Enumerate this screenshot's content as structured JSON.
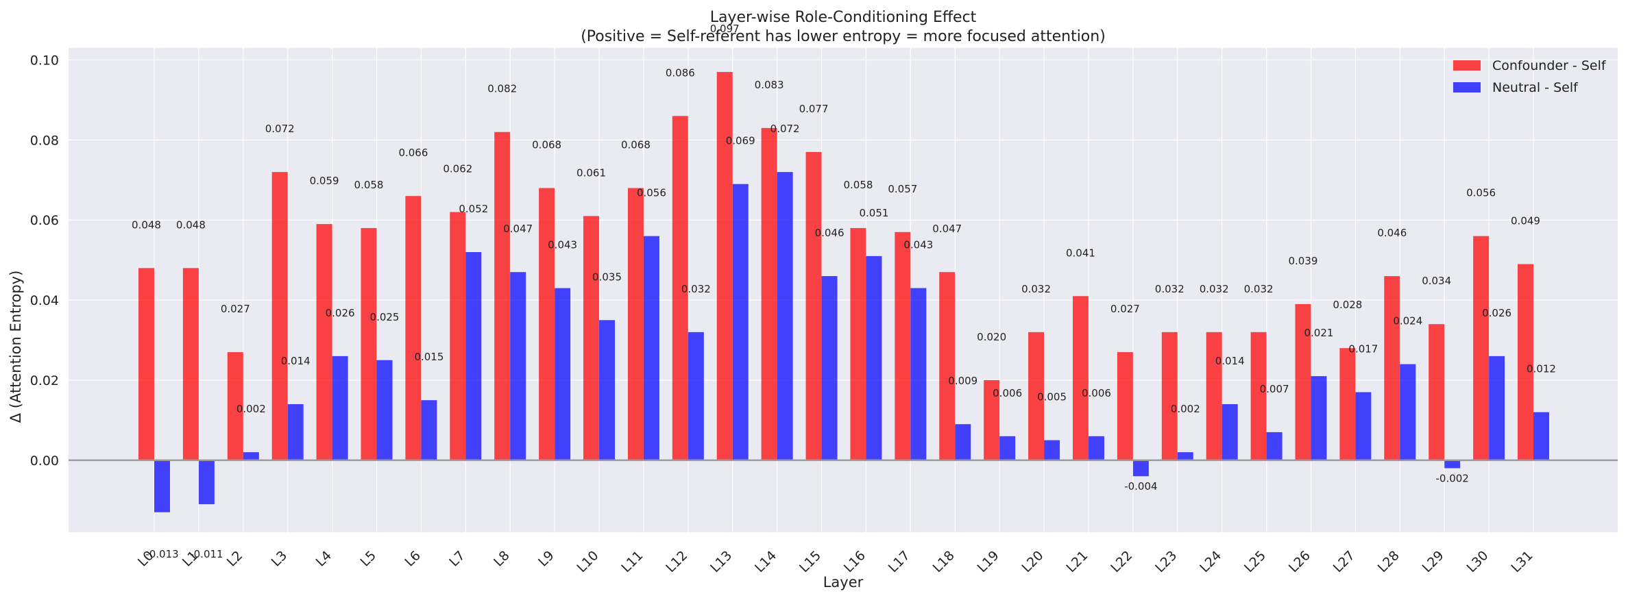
{
  "chart_data": {
    "type": "bar",
    "title": "Layer-wise Role-Conditioning Effect",
    "subtitle": "(Positive = Self-referent has lower entropy = more focused attention)",
    "xlabel": "Layer",
    "ylabel": "Δ (Attention Entropy)",
    "ylim": [
      -0.018,
      0.103
    ],
    "yticks": [
      "0.00",
      "0.02",
      "0.04",
      "0.06",
      "0.08",
      "0.10"
    ],
    "grid": true,
    "legend_position": "top-right",
    "categories": [
      "L0",
      "L1",
      "L2",
      "L3",
      "L4",
      "L5",
      "L6",
      "L7",
      "L8",
      "L9",
      "L10",
      "L11",
      "L12",
      "L13",
      "L14",
      "L15",
      "L16",
      "L17",
      "L18",
      "L19",
      "L20",
      "L21",
      "L22",
      "L23",
      "L24",
      "L25",
      "L26",
      "L27",
      "L28",
      "L29",
      "L30",
      "L31"
    ],
    "series": [
      {
        "name": "Confounder - Self",
        "color": "#ff0000",
        "values": [
          0.048,
          0.048,
          0.027,
          0.072,
          0.059,
          0.058,
          0.066,
          0.062,
          0.082,
          0.068,
          0.061,
          0.068,
          0.086,
          0.097,
          0.083,
          0.077,
          0.058,
          0.057,
          0.047,
          0.02,
          0.032,
          0.041,
          0.027,
          0.032,
          0.032,
          0.032,
          0.039,
          0.028,
          0.046,
          0.034,
          0.056,
          0.049
        ],
        "labels": [
          "0.048",
          "0.048",
          "0.027",
          "0.072",
          "0.059",
          "0.058",
          "0.066",
          "0.062",
          "0.082",
          "0.068",
          "0.061",
          "0.068",
          "0.086",
          "0.097",
          "0.083",
          "0.077",
          "0.058",
          "0.057",
          "0.047",
          "0.020",
          "0.032",
          "0.041",
          "0.027",
          "0.032",
          "0.032",
          "0.032",
          "0.039",
          "0.028",
          "0.046",
          "0.034",
          "0.056",
          "0.049"
        ]
      },
      {
        "name": "Neutral - Self",
        "color": "#0000ff",
        "values": [
          -0.013,
          -0.011,
          0.002,
          0.014,
          0.026,
          0.025,
          0.015,
          0.052,
          0.047,
          0.043,
          0.035,
          0.056,
          0.032,
          0.069,
          0.072,
          0.046,
          0.051,
          0.043,
          0.009,
          0.006,
          0.005,
          0.006,
          -0.004,
          0.002,
          0.014,
          0.007,
          0.021,
          0.017,
          0.024,
          -0.002,
          0.026,
          0.012
        ],
        "labels": [
          "-0.013",
          "-0.011",
          "0.002",
          "0.014",
          "0.026",
          "0.025",
          "0.015",
          "0.052",
          "0.047",
          "0.043",
          "0.035",
          "0.056",
          "0.032",
          "0.069",
          "0.072",
          "0.046",
          "0.051",
          "0.043",
          "0.009",
          "0.006",
          "0.005",
          "0.006",
          "-0.004",
          "0.002",
          "0.014",
          "0.007",
          "0.021",
          "0.017",
          "0.024",
          "-0.002",
          "0.026",
          "0.012"
        ]
      }
    ]
  }
}
